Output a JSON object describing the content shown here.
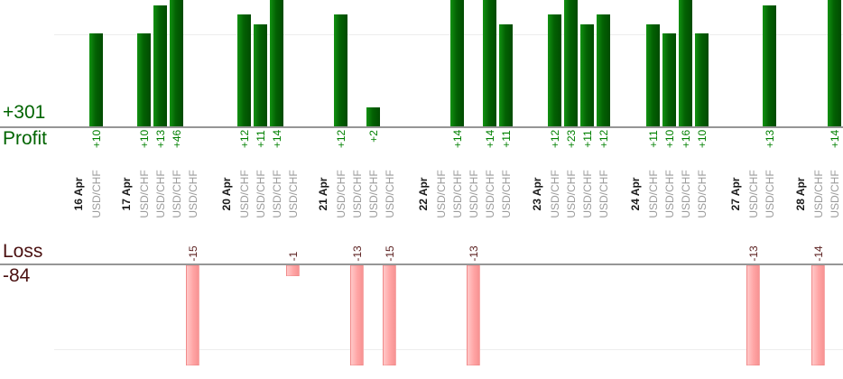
{
  "chart_data": {
    "type": "bar",
    "title": "",
    "legend": "none",
    "grid": "on",
    "panels": {
      "profit": {
        "axis_label": "Profit",
        "total": "+301",
        "bar_color": "#066203",
        "text_color": "#008000"
      },
      "loss": {
        "axis_label": "Loss",
        "total": "-84",
        "bar_color": "#ffa4a4",
        "text_color": "#5a1e1e"
      }
    },
    "groups": [
      {
        "date": "16 Apr",
        "trades": [
          {
            "symbol": "USD/CHF",
            "value": 10,
            "label": "+10"
          }
        ]
      },
      {
        "date": "17 Apr",
        "trades": [
          {
            "symbol": "USD/CHF",
            "value": 10,
            "label": "+10"
          },
          {
            "symbol": "USD/CHF",
            "value": 13,
            "label": "+13"
          },
          {
            "symbol": "USD/CHF",
            "value": 46,
            "label": "+46"
          },
          {
            "symbol": "USD/CHF",
            "value": -15,
            "label": "-15"
          }
        ]
      },
      {
        "date": "20 Apr",
        "trades": [
          {
            "symbol": "USD/CHF",
            "value": 12,
            "label": "+12"
          },
          {
            "symbol": "USD/CHF",
            "value": 11,
            "label": "+11"
          },
          {
            "symbol": "USD/CHF",
            "value": 14,
            "label": "+14"
          },
          {
            "symbol": "USD/CHF",
            "value": -1,
            "label": "-1"
          }
        ]
      },
      {
        "date": "21 Apr",
        "trades": [
          {
            "symbol": "USD/CHF",
            "value": 12,
            "label": "+12"
          },
          {
            "symbol": "USD/CHF",
            "value": -13,
            "label": "-13"
          },
          {
            "symbol": "USD/CHF",
            "value": 2,
            "label": "+2"
          },
          {
            "symbol": "USD/CHF",
            "value": -15,
            "label": "-15"
          }
        ]
      },
      {
        "date": "22 Apr",
        "trades": [
          {
            "symbol": "USD/CHF",
            "value": 0,
            "label": ""
          },
          {
            "symbol": "USD/CHF",
            "value": 14,
            "label": "+14"
          },
          {
            "symbol": "USD/CHF",
            "value": -13,
            "label": "-13"
          },
          {
            "symbol": "USD/CHF",
            "value": 14,
            "label": "+14"
          },
          {
            "symbol": "USD/CHF",
            "value": 11,
            "label": "+11"
          }
        ]
      },
      {
        "date": "23 Apr",
        "trades": [
          {
            "symbol": "USD/CHF",
            "value": 12,
            "label": "+12"
          },
          {
            "symbol": "USD/CHF",
            "value": 23,
            "label": "+23"
          },
          {
            "symbol": "USD/CHF",
            "value": 11,
            "label": "+11"
          },
          {
            "symbol": "USD/CHF",
            "value": 12,
            "label": "+12"
          }
        ]
      },
      {
        "date": "24 Apr",
        "trades": [
          {
            "symbol": "USD/CHF",
            "value": 11,
            "label": "+11"
          },
          {
            "symbol": "USD/CHF",
            "value": 10,
            "label": "+10"
          },
          {
            "symbol": "USD/CHF",
            "value": 16,
            "label": "+16"
          },
          {
            "symbol": "USD/CHF",
            "value": 10,
            "label": "+10"
          }
        ]
      },
      {
        "date": "27 Apr",
        "trades": [
          {
            "symbol": "USD/CHF",
            "value": -13,
            "label": "-13"
          },
          {
            "symbol": "USD/CHF",
            "value": 13,
            "label": "+13"
          }
        ]
      },
      {
        "date": "28 Apr",
        "trades": [
          {
            "symbol": "USD/CHF",
            "value": -14,
            "label": "-14"
          },
          {
            "symbol": "USD/CHF",
            "value": 14,
            "label": "+14"
          }
        ]
      }
    ]
  }
}
